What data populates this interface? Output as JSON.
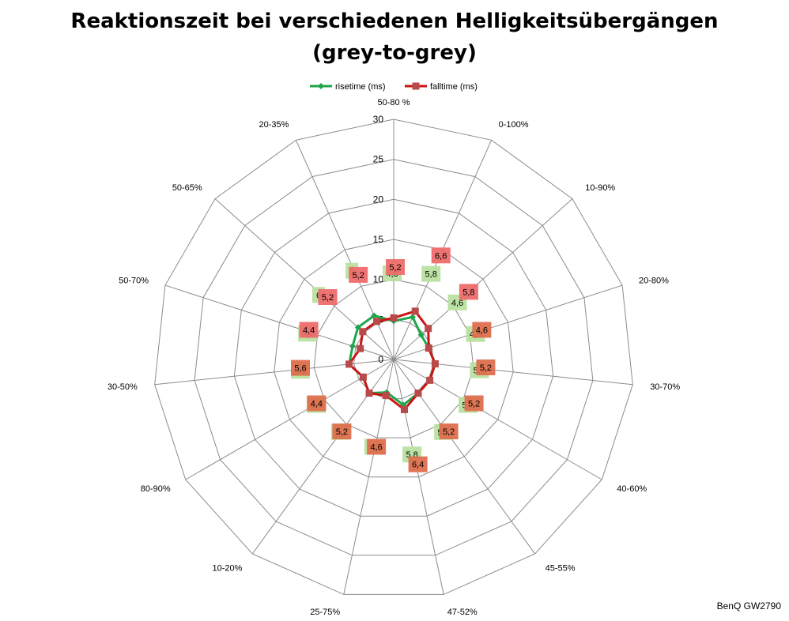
{
  "chart_data": {
    "type": "radar",
    "title": "Reaktionszeit bei verschiedenen Helligkeitsübergängen",
    "subtitle": "(grey-to-grey)",
    "categories": [
      "50-80 %",
      "0-100%",
      "10-90%",
      "20-80%",
      "30-70%",
      "40-60%",
      "45-55%",
      "47-52%",
      "25-75%",
      "10-20%",
      "80-90%",
      "30-50%",
      "50-70%",
      "50-65%",
      "20-35%"
    ],
    "ylim": [
      0,
      30
    ],
    "ticks": [
      0,
      5,
      10,
      15,
      20,
      25,
      30
    ],
    "grid": true,
    "legend_position": "top",
    "series": [
      {
        "name": "risetime (ms)",
        "color": "#1fa64a",
        "values": [
          4.8,
          5.8,
          4.6,
          4.6,
          5.2,
          5.2,
          5.2,
          5.8,
          4.2,
          5.2,
          4.4,
          5.6,
          5.4,
          6,
          6
        ],
        "labels": [
          "4,8",
          "5,8",
          "4,6",
          "4,6",
          "5,2",
          "5,2",
          "5,2",
          "5,8",
          "4,2",
          "5,2",
          "4,4",
          "5,6",
          "5,4",
          "6",
          "6"
        ]
      },
      {
        "name": "falltime (ms)",
        "color": "#cc1414",
        "values": [
          5.2,
          6.6,
          5.8,
          4.6,
          5.2,
          5.2,
          5.2,
          6.4,
          4.6,
          5.2,
          4.4,
          5.6,
          4.4,
          5.2,
          5.2
        ],
        "labels": [
          "5,2",
          "6,6",
          "5,8",
          "4,6",
          "5,2",
          "5,2",
          "5,2",
          "6,4",
          "4,6",
          "5,2",
          "4,4",
          "5,6",
          "4,4",
          "5,2",
          "5,2"
        ]
      }
    ]
  },
  "watermark": "BenQ GW2790"
}
